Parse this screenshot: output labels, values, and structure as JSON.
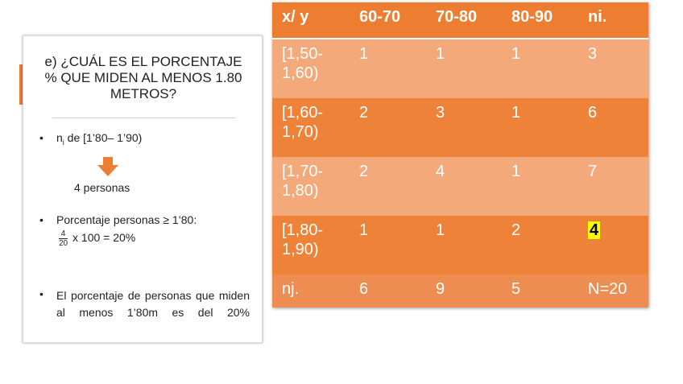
{
  "slide": {
    "title": "e) ¿CUÁL ES EL PORCENTAJE % QUE MIDEN AL MENOS 1.80 METROS?",
    "bullet1": {
      "prefix": "n",
      "subscript": "i",
      "suffix": " de [1’80– 1’90)"
    },
    "result_text": "4 personas",
    "bullet2": {
      "text": "Porcentaje personas ≥ 1’80:",
      "frac_num": "4",
      "frac_den": "20",
      "formula": " x 100 = 20%"
    },
    "bullet3": {
      "text": "El porcentaje de personas que miden al menos 1’80m es del 20%"
    },
    "accent_color": "#ED7D31"
  },
  "table": {
    "headers": [
      "x/ y",
      "60-70",
      "70-80",
      "80-90",
      "ni."
    ],
    "rows": [
      [
        "[1,50-1,60)",
        "1",
        "1",
        "1",
        "3"
      ],
      [
        "[1,60-1,70)",
        "2",
        "3",
        "1",
        "6"
      ],
      [
        "[1,70-1,80)",
        "2",
        "4",
        "1",
        "7"
      ],
      [
        "[1,80-1,90)",
        "1",
        "1",
        "2",
        "4"
      ]
    ],
    "footer": [
      "nj.",
      "6",
      "9",
      "5",
      "N=20"
    ],
    "highlight_color": "#FFFF00"
  }
}
